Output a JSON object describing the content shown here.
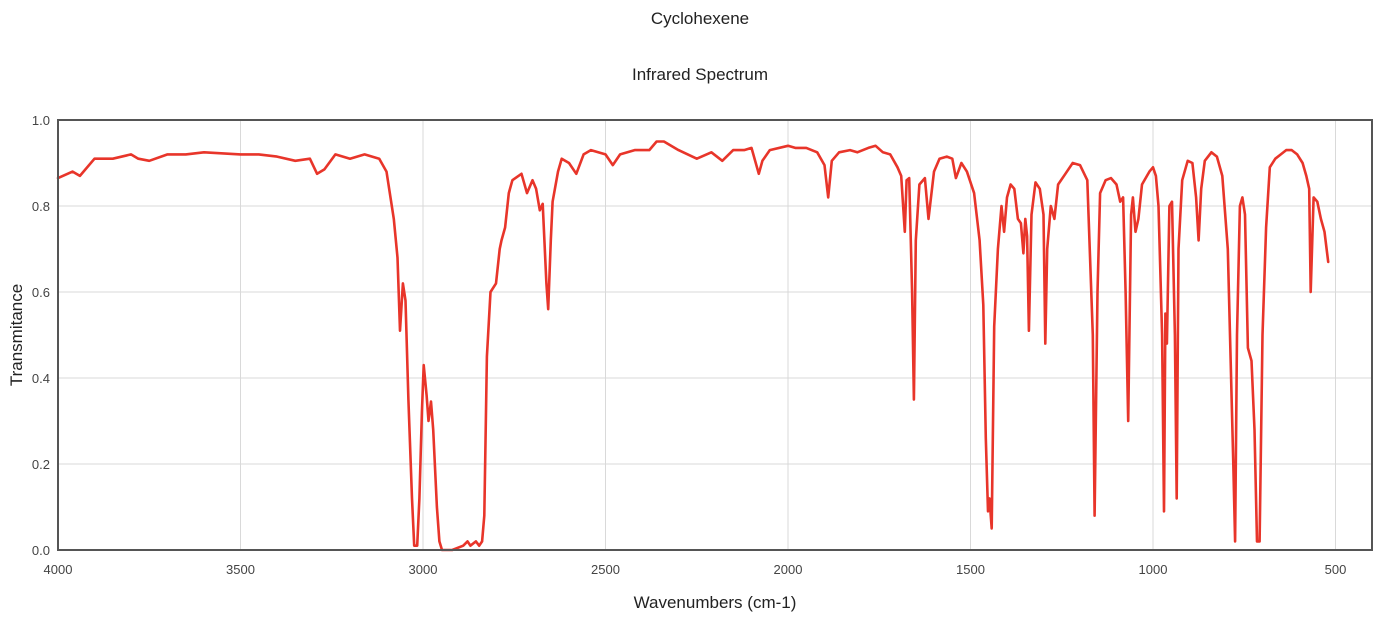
{
  "chart_data": {
    "type": "line",
    "title": "Cyclohexene",
    "subtitle": "Infrared Spectrum",
    "xlabel": "Wavenumbers (cm-1)",
    "ylabel": "Transmitance",
    "xlim": [
      4000,
      400
    ],
    "ylim": [
      0,
      1
    ],
    "x_reversed": true,
    "grid": true,
    "x_ticks": [
      4000,
      3500,
      3000,
      2500,
      2000,
      1500,
      1000,
      500
    ],
    "x_tick_labels": [
      "4000",
      "3500",
      "3000",
      "2500",
      "2000",
      "1500",
      "1000",
      "500"
    ],
    "y_ticks": [
      0,
      0.2,
      0.4,
      0.6,
      0.8,
      1.0
    ],
    "y_tick_labels": [
      "0.0",
      "0.2",
      "0.4",
      "0.6",
      "0.8",
      "1.0"
    ],
    "series": [
      {
        "color": "#e8352a",
        "points": [
          [
            4000,
            0.865
          ],
          [
            3960,
            0.88
          ],
          [
            3940,
            0.87
          ],
          [
            3900,
            0.91
          ],
          [
            3850,
            0.91
          ],
          [
            3800,
            0.92
          ],
          [
            3780,
            0.91
          ],
          [
            3750,
            0.905
          ],
          [
            3700,
            0.92
          ],
          [
            3650,
            0.92
          ],
          [
            3600,
            0.925
          ],
          [
            3500,
            0.92
          ],
          [
            3450,
            0.92
          ],
          [
            3400,
            0.915
          ],
          [
            3350,
            0.905
          ],
          [
            3310,
            0.91
          ],
          [
            3290,
            0.875
          ],
          [
            3270,
            0.885
          ],
          [
            3240,
            0.92
          ],
          [
            3200,
            0.91
          ],
          [
            3160,
            0.92
          ],
          [
            3120,
            0.91
          ],
          [
            3100,
            0.88
          ],
          [
            3080,
            0.77
          ],
          [
            3070,
            0.68
          ],
          [
            3063,
            0.51
          ],
          [
            3055,
            0.62
          ],
          [
            3048,
            0.58
          ],
          [
            3040,
            0.35
          ],
          [
            3030,
            0.12
          ],
          [
            3024,
            0.01
          ],
          [
            3016,
            0.01
          ],
          [
            3010,
            0.12
          ],
          [
            3003,
            0.32
          ],
          [
            2998,
            0.43
          ],
          [
            2990,
            0.36
          ],
          [
            2985,
            0.3
          ],
          [
            2978,
            0.345
          ],
          [
            2972,
            0.28
          ],
          [
            2962,
            0.1
          ],
          [
            2955,
            0.02
          ],
          [
            2948,
            0.0
          ],
          [
            2920,
            0.0
          ],
          [
            2890,
            0.01
          ],
          [
            2878,
            0.02
          ],
          [
            2870,
            0.01
          ],
          [
            2855,
            0.02
          ],
          [
            2846,
            0.01
          ],
          [
            2838,
            0.02
          ],
          [
            2832,
            0.08
          ],
          [
            2825,
            0.45
          ],
          [
            2815,
            0.6
          ],
          [
            2800,
            0.62
          ],
          [
            2790,
            0.7
          ],
          [
            2785,
            0.72
          ],
          [
            2775,
            0.75
          ],
          [
            2765,
            0.83
          ],
          [
            2755,
            0.86
          ],
          [
            2730,
            0.875
          ],
          [
            2715,
            0.83
          ],
          [
            2700,
            0.86
          ],
          [
            2690,
            0.84
          ],
          [
            2680,
            0.79
          ],
          [
            2672,
            0.805
          ],
          [
            2662,
            0.62
          ],
          [
            2657,
            0.56
          ],
          [
            2650,
            0.72
          ],
          [
            2645,
            0.81
          ],
          [
            2630,
            0.88
          ],
          [
            2620,
            0.91
          ],
          [
            2600,
            0.9
          ],
          [
            2580,
            0.875
          ],
          [
            2560,
            0.92
          ],
          [
            2540,
            0.93
          ],
          [
            2500,
            0.92
          ],
          [
            2480,
            0.895
          ],
          [
            2460,
            0.92
          ],
          [
            2420,
            0.93
          ],
          [
            2380,
            0.93
          ],
          [
            2360,
            0.95
          ],
          [
            2340,
            0.95
          ],
          [
            2300,
            0.93
          ],
          [
            2250,
            0.91
          ],
          [
            2210,
            0.925
          ],
          [
            2180,
            0.905
          ],
          [
            2150,
            0.93
          ],
          [
            2120,
            0.93
          ],
          [
            2100,
            0.935
          ],
          [
            2080,
            0.875
          ],
          [
            2070,
            0.905
          ],
          [
            2050,
            0.93
          ],
          [
            2000,
            0.94
          ],
          [
            1980,
            0.935
          ],
          [
            1950,
            0.935
          ],
          [
            1920,
            0.925
          ],
          [
            1900,
            0.895
          ],
          [
            1890,
            0.82
          ],
          [
            1880,
            0.905
          ],
          [
            1860,
            0.925
          ],
          [
            1830,
            0.93
          ],
          [
            1810,
            0.925
          ],
          [
            1780,
            0.935
          ],
          [
            1760,
            0.94
          ],
          [
            1740,
            0.925
          ],
          [
            1720,
            0.92
          ],
          [
            1700,
            0.89
          ],
          [
            1690,
            0.87
          ],
          [
            1680,
            0.74
          ],
          [
            1675,
            0.86
          ],
          [
            1668,
            0.865
          ],
          [
            1660,
            0.6
          ],
          [
            1655,
            0.35
          ],
          [
            1650,
            0.72
          ],
          [
            1640,
            0.85
          ],
          [
            1625,
            0.865
          ],
          [
            1615,
            0.77
          ],
          [
            1600,
            0.88
          ],
          [
            1585,
            0.91
          ],
          [
            1565,
            0.915
          ],
          [
            1550,
            0.91
          ],
          [
            1540,
            0.865
          ],
          [
            1525,
            0.9
          ],
          [
            1510,
            0.88
          ],
          [
            1490,
            0.83
          ],
          [
            1475,
            0.72
          ],
          [
            1465,
            0.57
          ],
          [
            1458,
            0.26
          ],
          [
            1452,
            0.09
          ],
          [
            1448,
            0.12
          ],
          [
            1442,
            0.05
          ],
          [
            1435,
            0.52
          ],
          [
            1425,
            0.7
          ],
          [
            1415,
            0.8
          ],
          [
            1408,
            0.74
          ],
          [
            1400,
            0.82
          ],
          [
            1390,
            0.85
          ],
          [
            1380,
            0.84
          ],
          [
            1370,
            0.77
          ],
          [
            1362,
            0.76
          ],
          [
            1355,
            0.69
          ],
          [
            1350,
            0.77
          ],
          [
            1345,
            0.73
          ],
          [
            1340,
            0.51
          ],
          [
            1333,
            0.78
          ],
          [
            1322,
            0.855
          ],
          [
            1310,
            0.84
          ],
          [
            1300,
            0.78
          ],
          [
            1295,
            0.48
          ],
          [
            1290,
            0.7
          ],
          [
            1280,
            0.8
          ],
          [
            1270,
            0.77
          ],
          [
            1260,
            0.85
          ],
          [
            1240,
            0.875
          ],
          [
            1220,
            0.9
          ],
          [
            1200,
            0.895
          ],
          [
            1180,
            0.86
          ],
          [
            1165,
            0.5
          ],
          [
            1160,
            0.08
          ],
          [
            1152,
            0.6
          ],
          [
            1145,
            0.83
          ],
          [
            1130,
            0.86
          ],
          [
            1115,
            0.865
          ],
          [
            1100,
            0.85
          ],
          [
            1090,
            0.81
          ],
          [
            1082,
            0.82
          ],
          [
            1075,
            0.6
          ],
          [
            1068,
            0.3
          ],
          [
            1060,
            0.78
          ],
          [
            1055,
            0.82
          ],
          [
            1048,
            0.74
          ],
          [
            1040,
            0.77
          ],
          [
            1030,
            0.85
          ],
          [
            1010,
            0.88
          ],
          [
            1000,
            0.89
          ],
          [
            992,
            0.87
          ],
          [
            985,
            0.8
          ],
          [
            975,
            0.5
          ],
          [
            970,
            0.09
          ],
          [
            966,
            0.55
          ],
          [
            962,
            0.48
          ],
          [
            955,
            0.8
          ],
          [
            948,
            0.81
          ],
          [
            940,
            0.5
          ],
          [
            935,
            0.12
          ],
          [
            930,
            0.7
          ],
          [
            920,
            0.86
          ],
          [
            905,
            0.905
          ],
          [
            892,
            0.9
          ],
          [
            882,
            0.82
          ],
          [
            875,
            0.72
          ],
          [
            868,
            0.84
          ],
          [
            858,
            0.905
          ],
          [
            840,
            0.925
          ],
          [
            825,
            0.915
          ],
          [
            810,
            0.87
          ],
          [
            795,
            0.7
          ],
          [
            780,
            0.2
          ],
          [
            775,
            0.02
          ],
          [
            770,
            0.5
          ],
          [
            762,
            0.8
          ],
          [
            755,
            0.82
          ],
          [
            748,
            0.78
          ],
          [
            740,
            0.47
          ],
          [
            730,
            0.44
          ],
          [
            722,
            0.28
          ],
          [
            715,
            0.02
          ],
          [
            708,
            0.02
          ],
          [
            700,
            0.5
          ],
          [
            690,
            0.75
          ],
          [
            680,
            0.89
          ],
          [
            665,
            0.91
          ],
          [
            650,
            0.92
          ],
          [
            635,
            0.93
          ],
          [
            620,
            0.93
          ],
          [
            605,
            0.92
          ],
          [
            590,
            0.9
          ],
          [
            580,
            0.87
          ],
          [
            572,
            0.84
          ],
          [
            568,
            0.6
          ],
          [
            560,
            0.82
          ],
          [
            550,
            0.81
          ],
          [
            540,
            0.77
          ],
          [
            530,
            0.74
          ],
          [
            520,
            0.67
          ]
        ]
      }
    ]
  }
}
